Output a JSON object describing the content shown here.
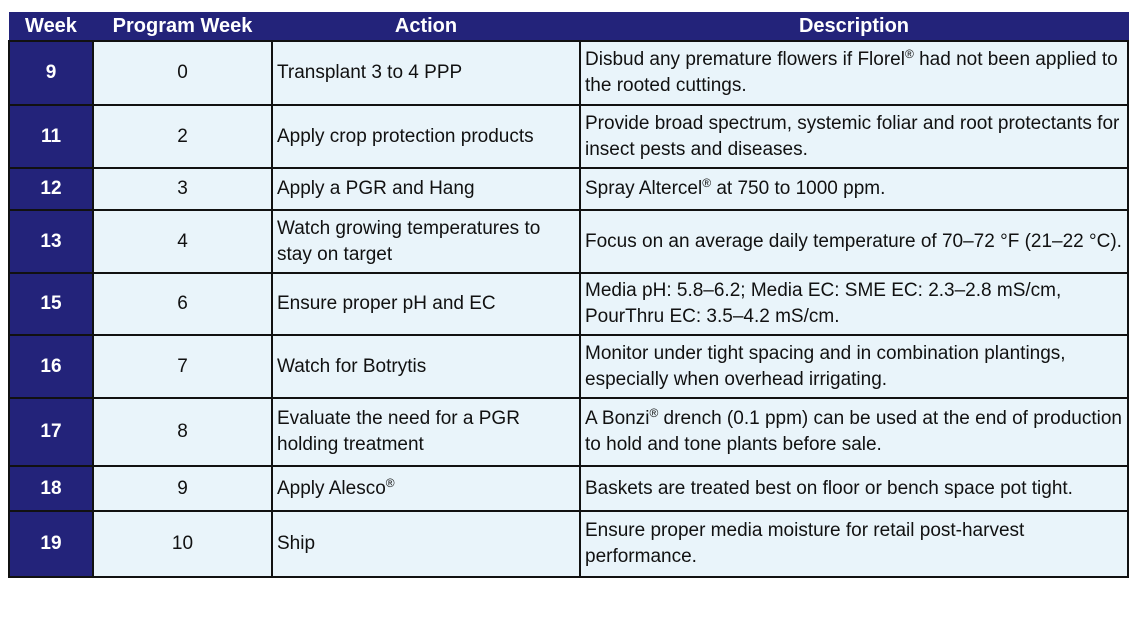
{
  "table": {
    "header": [
      "Week",
      "Program Week",
      "Action",
      "Description"
    ],
    "rows": [
      [
        "9",
        "0",
        "Transplant 3 to 4 PPP",
        "Disbud any premature flowers if Florel® had not been applied to the rooted cuttings."
      ],
      [
        "11",
        "2",
        "Apply crop protection products",
        "Provide broad spectrum, systemic foliar and root protectants for insect pests and diseases."
      ],
      [
        "12",
        "3",
        "Apply a PGR and Hang",
        "Spray Altercel® at 750 to 1000 ppm."
      ],
      [
        "13",
        "4",
        "Watch growing temperatures to stay on target",
        "Focus on an average daily temperature of 70–72 °F (21–22 °C)."
      ],
      [
        "15",
        "6",
        "Ensure proper pH and EC",
        "Media pH: 5.8–6.2; Media EC: SME EC: 2.3–2.8 mS/cm, PourThru EC: 3.5–4.2 mS/cm."
      ],
      [
        "16",
        "7",
        "Watch for Botrytis",
        "Monitor under tight spacing and in combination plantings, especially when overhead irrigating."
      ],
      [
        "17",
        "8",
        "Evaluate the need for a PGR holding treatment",
        "A Bonzi® drench (0.1 ppm) can be used at the end of production to hold and tone plants before sale."
      ],
      [
        "18",
        "9",
        "Apply Alesco®",
        "Baskets are treated best on floor or bench space pot tight."
      ],
      [
        "19",
        "10",
        "Ship",
        "Ensure proper media moisture for retail post-harvest performance."
      ]
    ]
  }
}
